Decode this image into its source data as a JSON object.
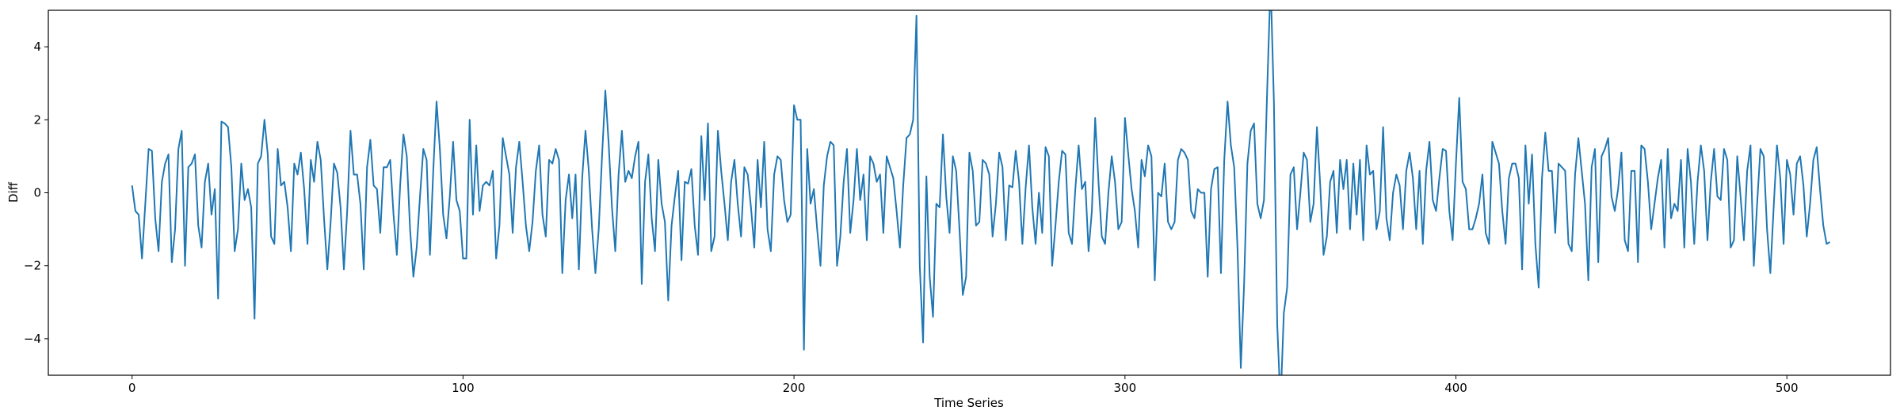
{
  "chart_data": {
    "type": "line",
    "title": "",
    "xlabel": "Time Series",
    "ylabel": "Diff",
    "xlim": [
      -25.3,
      531.3
    ],
    "ylim": [
      -5,
      5
    ],
    "xticks": [
      0,
      100,
      200,
      300,
      400,
      500
    ],
    "yticks": [
      -4,
      -2,
      0,
      2,
      4
    ],
    "ytick_labels": [
      "−4",
      "−2",
      "0",
      "2",
      "4"
    ],
    "grid": false,
    "legend": "none",
    "series": [
      {
        "color": "#1f77b4",
        "values": [
          0.2,
          -0.5,
          -0.6,
          -1.8,
          -0.3,
          1.2,
          1.15,
          -0.7,
          -1.6,
          0.3,
          0.8,
          1.05,
          -1.9,
          -1.0,
          1.2,
          1.7,
          -2.0,
          0.7,
          0.8,
          1.05,
          -0.9,
          -1.5,
          0.3,
          0.8,
          -0.6,
          0.1,
          -2.9,
          1.95,
          1.9,
          1.8,
          0.7,
          -1.6,
          -1.0,
          0.8,
          -0.2,
          0.1,
          -0.4,
          -3.45,
          0.8,
          1.0,
          2.0,
          1.05,
          -1.2,
          -1.4,
          1.2,
          0.2,
          0.3,
          -0.4,
          -1.6,
          0.8,
          0.5,
          1.1,
          0.1,
          -1.4,
          0.9,
          0.3,
          1.4,
          0.9,
          -0.7,
          -2.1,
          -0.8,
          0.8,
          0.55,
          -0.4,
          -2.1,
          -0.5,
          1.7,
          0.5,
          0.5,
          -0.3,
          -2.1,
          0.7,
          1.45,
          0.2,
          0.1,
          -1.1,
          0.7,
          0.7,
          0.9,
          -0.6,
          -1.7,
          0.2,
          1.6,
          1.0,
          -1.0,
          -2.3,
          -1.5,
          -0.1,
          1.2,
          0.9,
          -1.7,
          0.6,
          2.5,
          1.2,
          -0.6,
          -1.25,
          -0.1,
          1.4,
          -0.2,
          -0.5,
          -1.8,
          -1.8,
          2.0,
          -0.6,
          1.3,
          -0.5,
          0.2,
          0.3,
          0.2,
          0.6,
          -1.8,
          -0.9,
          1.5,
          1.0,
          0.5,
          -1.1,
          0.7,
          1.4,
          0.3,
          -0.9,
          -1.6,
          -0.8,
          0.6,
          1.3,
          -0.6,
          -1.2,
          0.9,
          0.8,
          1.2,
          0.9,
          -2.2,
          -0.2,
          0.5,
          -0.7,
          0.5,
          -2.1,
          0.4,
          1.7,
          0.6,
          -1.0,
          -2.2,
          -1.0,
          1.0,
          2.8,
          1.35,
          -0.4,
          -1.6,
          0.5,
          1.7,
          0.3,
          0.6,
          0.4,
          1.0,
          1.4,
          -2.5,
          0.3,
          1.05,
          -0.7,
          -1.6,
          0.9,
          -0.3,
          -0.8,
          -2.95,
          -0.9,
          -0.1,
          0.6,
          -1.85,
          0.3,
          0.25,
          0.65,
          -0.9,
          -1.7,
          1.55,
          -0.2,
          1.9,
          -1.6,
          -1.2,
          1.7,
          0.6,
          -0.3,
          -1.3,
          0.3,
          0.9,
          -0.3,
          -1.2,
          0.7,
          0.5,
          -0.4,
          -1.5,
          0.9,
          -0.4,
          1.4,
          -1.0,
          -1.6,
          0.5,
          1.0,
          0.9,
          -0.2,
          -0.8,
          -0.6,
          2.4,
          2.0,
          2.0,
          -4.3,
          1.2,
          -0.3,
          0.1,
          -1.0,
          -2.0,
          0.2,
          1.0,
          1.4,
          1.3,
          -2.0,
          -1.2,
          0.3,
          1.2,
          -1.1,
          -0.2,
          1.2,
          -0.2,
          0.5,
          -1.3,
          1.0,
          0.8,
          0.3,
          0.5,
          -1.1,
          1.0,
          0.7,
          0.4,
          -0.5,
          -1.5,
          0.2,
          1.5,
          1.6,
          2.0,
          4.85,
          -2.0,
          -4.1,
          0.45,
          -2.3,
          -3.4,
          -0.3,
          -0.4,
          1.6,
          -0.1,
          -1.1,
          1.0,
          0.6,
          -1.0,
          -2.8,
          -2.3,
          1.1,
          0.6,
          -0.9,
          -0.8,
          0.9,
          0.8,
          0.5,
          -1.2,
          -0.3,
          1.1,
          0.7,
          -1.3,
          0.2,
          0.15,
          1.15,
          0.3,
          -1.4,
          0.15,
          1.3,
          -0.4,
          -1.4,
          0.0,
          -1.1,
          1.25,
          1.0,
          -2.0,
          -0.9,
          0.3,
          1.15,
          1.05,
          -1.1,
          -1.4,
          0.1,
          1.3,
          0.1,
          0.3,
          -1.6,
          -0.5,
          2.05,
          0.3,
          -1.2,
          -1.4,
          0.0,
          1.0,
          0.3,
          -1.0,
          -0.8,
          2.05,
          1.05,
          0.1,
          -0.5,
          -1.5,
          0.9,
          0.45,
          1.3,
          1.0,
          -2.4,
          0.0,
          -0.1,
          0.8,
          -0.8,
          -1.0,
          -0.8,
          0.9,
          1.2,
          1.1,
          0.9,
          -0.5,
          -0.7,
          0.1,
          0.0,
          0.0,
          -2.3,
          0.1,
          0.65,
          0.7,
          -2.2,
          0.9,
          2.5,
          1.3,
          0.7,
          -1.5,
          -4.8,
          -2.5,
          0.8,
          1.7,
          1.9,
          -0.3,
          -0.7,
          -0.2,
          2.9,
          5.8,
          2.5,
          -3.6,
          -5.8,
          -3.3,
          -2.6,
          0.5,
          0.7,
          -1.0,
          0.0,
          1.1,
          0.9,
          -0.8,
          -0.3,
          1.8,
          0.2,
          -1.7,
          -1.2,
          0.3,
          0.6,
          -1.1,
          0.9,
          0.1,
          0.9,
          -1.0,
          0.8,
          -0.6,
          0.9,
          -1.3,
          1.3,
          0.5,
          0.6,
          -1.0,
          -0.5,
          1.8,
          -0.7,
          -1.3,
          0.0,
          0.5,
          0.2,
          -1.0,
          0.6,
          1.1,
          0.4,
          -1.0,
          0.6,
          -1.4,
          0.6,
          1.4,
          -0.2,
          -0.5,
          0.4,
          1.2,
          1.15,
          -0.5,
          -1.3,
          0.8,
          2.6,
          0.3,
          0.1,
          -1.0,
          -1.0,
          -0.7,
          -0.3,
          0.5,
          -1.1,
          -1.4,
          1.4,
          1.1,
          0.8,
          -0.5,
          -1.4,
          0.4,
          0.8,
          0.8,
          0.4,
          -2.1,
          1.3,
          -0.3,
          1.05,
          -1.4,
          -2.6,
          0.4,
          1.65,
          0.6,
          0.6,
          -1.1,
          0.8,
          0.7,
          0.6,
          -1.4,
          -1.6,
          0.5,
          1.5,
          0.6,
          -0.3,
          -2.4,
          0.7,
          1.2,
          -1.9,
          1.0,
          1.2,
          1.5,
          -0.1,
          -0.5,
          0.1,
          1.1,
          -1.3,
          -1.6,
          0.6,
          0.6,
          -1.9,
          1.3,
          1.2,
          0.3,
          -1.0,
          -0.3,
          0.4,
          0.9,
          -1.5,
          1.2,
          -0.7,
          -0.3,
          -0.5,
          0.9,
          -1.5,
          1.2,
          0.3,
          -1.4,
          0.3,
          1.3,
          0.6,
          -1.3,
          0.3,
          1.2,
          -0.1,
          -0.2,
          1.2,
          0.9,
          -1.5,
          -1.3,
          1.0,
          -0.1,
          -1.3,
          0.6,
          1.3,
          -2.0,
          -0.3,
          1.2,
          1.0,
          -1.0,
          -2.2,
          -0.4,
          1.3,
          0.4,
          -1.4,
          0.9,
          0.5,
          -0.6,
          0.8,
          1.0,
          0.2,
          -1.2,
          -0.3,
          0.9,
          1.25,
          0.1,
          -0.9,
          -1.4,
          -1.35
        ]
      }
    ]
  }
}
